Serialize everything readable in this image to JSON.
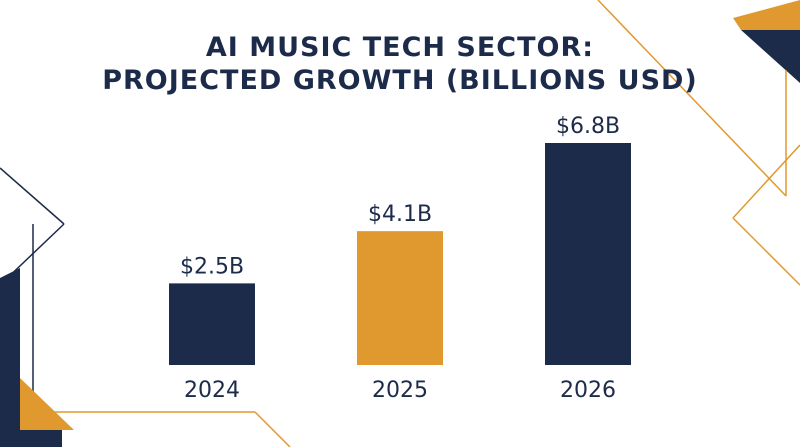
{
  "colors": {
    "navy": "#1d2b4a",
    "gold": "#e0992e",
    "background": "#ffffff"
  },
  "chart_data": {
    "type": "bar",
    "title": "AI MUSIC TECH SECTOR:",
    "subtitle": "PROJECTED GROWTH (BILLIONS USD)",
    "categories": [
      "2024",
      "2025",
      "2026"
    ],
    "values": [
      2.5,
      4.1,
      6.8
    ],
    "value_labels": [
      "$2.5B",
      "$4.1B",
      "$6.8B"
    ],
    "bar_colors": [
      "#1d2b4a",
      "#e0992e",
      "#1d2b4a"
    ],
    "xlabel": "",
    "ylabel": "",
    "ylim": [
      0,
      6.8
    ],
    "grid": false,
    "legend": "none"
  }
}
